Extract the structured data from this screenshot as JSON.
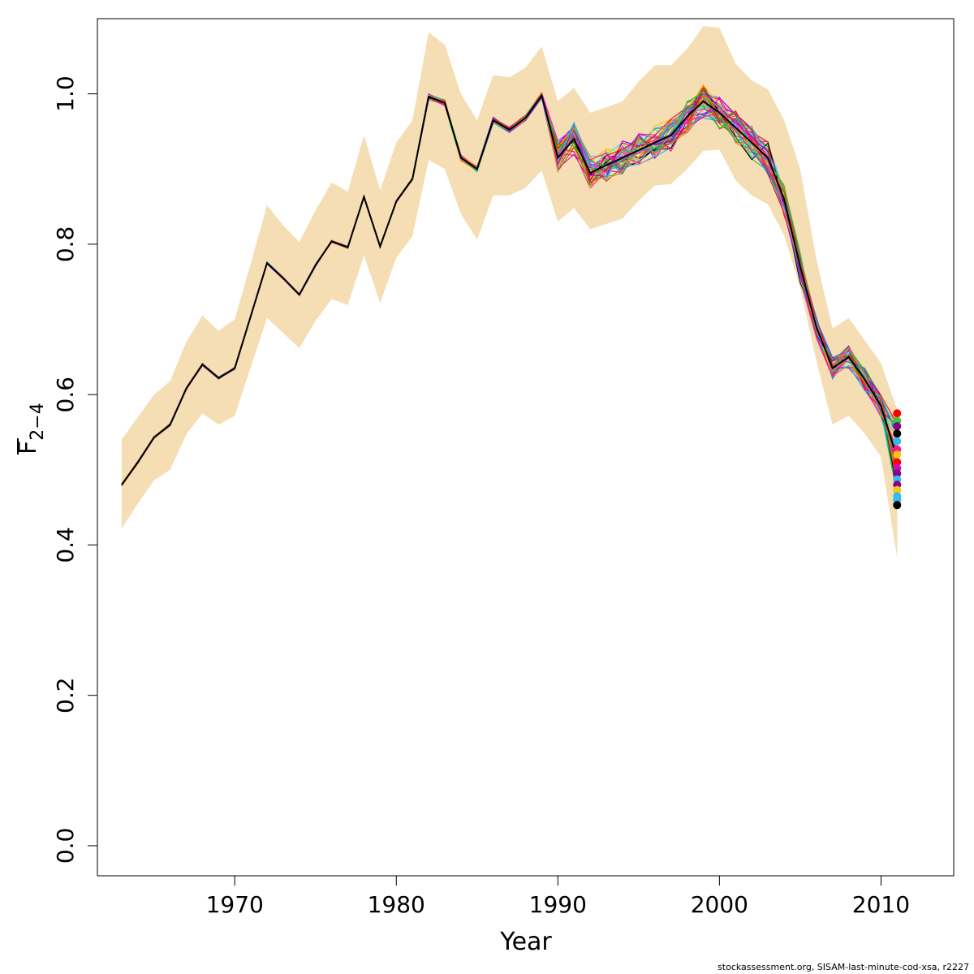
{
  "chart_data": {
    "type": "line",
    "title": "",
    "xlabel": "Year",
    "ylabel": "F",
    "ylabel_subscript": "2−4",
    "xlim": [
      1961.5,
      2014.5
    ],
    "ylim": [
      -0.04,
      1.1
    ],
    "x_ticks": [
      1970,
      1980,
      1990,
      2000,
      2010
    ],
    "x_tick_labels": [
      "1970",
      "1980",
      "1990",
      "2000",
      "2010"
    ],
    "y_ticks": [
      0.0,
      0.2,
      0.4,
      0.6,
      0.8,
      1.0
    ],
    "y_tick_labels": [
      "0.0",
      "0.2",
      "0.4",
      "0.6",
      "0.8",
      "1.0"
    ],
    "grid": false,
    "band_color": "#f5deb3",
    "x": [
      1963,
      1964,
      1965,
      1966,
      1967,
      1968,
      1969,
      1970,
      1971,
      1972,
      1973,
      1974,
      1975,
      1976,
      1977,
      1978,
      1979,
      1980,
      1981,
      1982,
      1983,
      1984,
      1985,
      1986,
      1987,
      1988,
      1989,
      1990,
      1991,
      1992,
      1993,
      1994,
      1995,
      1996,
      1997,
      1998,
      1999,
      2000,
      2001,
      2002,
      2003,
      2004,
      2005,
      2006,
      2007,
      2008,
      2009,
      2010,
      2011
    ],
    "central": [
      0.48,
      0.51,
      0.543,
      0.56,
      0.608,
      0.64,
      0.622,
      0.635,
      0.705,
      0.775,
      0.755,
      0.733,
      0.772,
      0.804,
      0.796,
      0.863,
      0.797,
      0.857,
      0.887,
      0.996,
      0.988,
      0.915,
      0.9,
      0.965,
      0.952,
      0.968,
      0.998,
      0.915,
      0.94,
      0.895,
      0.905,
      0.915,
      0.925,
      0.935,
      0.945,
      0.97,
      0.99,
      0.975,
      0.955,
      0.935,
      0.915,
      0.86,
      0.77,
      0.69,
      0.635,
      0.65,
      0.62,
      0.585,
      0.515
    ],
    "band_upper": [
      0.54,
      0.57,
      0.6,
      0.618,
      0.67,
      0.705,
      0.685,
      0.7,
      0.775,
      0.852,
      0.825,
      0.803,
      0.845,
      0.882,
      0.87,
      0.945,
      0.872,
      0.935,
      0.965,
      1.082,
      1.065,
      1.0,
      0.965,
      1.025,
      1.022,
      1.035,
      1.063,
      0.99,
      1.008,
      0.975,
      0.982,
      0.99,
      1.016,
      1.038,
      1.038,
      1.06,
      1.09,
      1.088,
      1.04,
      1.018,
      1.006,
      0.965,
      0.9,
      0.78,
      0.688,
      0.702,
      0.672,
      0.642,
      0.58
    ],
    "band_lower": [
      0.422,
      0.455,
      0.486,
      0.5,
      0.547,
      0.575,
      0.56,
      0.572,
      0.637,
      0.702,
      0.682,
      0.662,
      0.698,
      0.727,
      0.719,
      0.785,
      0.722,
      0.782,
      0.811,
      0.912,
      0.9,
      0.84,
      0.806,
      0.865,
      0.865,
      0.875,
      0.898,
      0.83,
      0.848,
      0.82,
      0.827,
      0.834,
      0.858,
      0.878,
      0.88,
      0.9,
      0.924,
      0.926,
      0.885,
      0.865,
      0.853,
      0.812,
      0.742,
      0.645,
      0.56,
      0.572,
      0.548,
      0.517,
      0.383
    ],
    "series_colors": [
      "#000000",
      "#df536b",
      "#61d04f",
      "#2297e6",
      "#28e2e5",
      "#cd0bbc",
      "#f5c710",
      "#9e9e9e",
      "#ff0000",
      "#ff00ff",
      "#ff6a00",
      "#00c000",
      "#7f00ff",
      "#00bfff",
      "#a05a00",
      "#ff1493",
      "#e6194b",
      "#3cb44b",
      "#4363d8",
      "#f58231"
    ],
    "end_points": [
      {
        "year": 2011,
        "value": 0.575,
        "color": "#ff0000"
      },
      {
        "year": 2011,
        "value": 0.565,
        "color": "#33cc33"
      },
      {
        "year": 2011,
        "value": 0.558,
        "color": "#8b008b"
      },
      {
        "year": 2011,
        "value": 0.548,
        "color": "#000000"
      },
      {
        "year": 2011,
        "value": 0.538,
        "color": "#33bbee"
      },
      {
        "year": 2011,
        "value": 0.527,
        "color": "#ff1493"
      },
      {
        "year": 2011,
        "value": 0.52,
        "color": "#f5c710"
      },
      {
        "year": 2011,
        "value": 0.51,
        "color": "#ff0000"
      },
      {
        "year": 2011,
        "value": 0.502,
        "color": "#cd0bbc"
      },
      {
        "year": 2011,
        "value": 0.495,
        "color": "#8b008b"
      },
      {
        "year": 2011,
        "value": 0.487,
        "color": "#33bbee"
      },
      {
        "year": 2011,
        "value": 0.48,
        "color": "#8b008b"
      },
      {
        "year": 2011,
        "value": 0.473,
        "color": "#f5c710"
      },
      {
        "year": 2011,
        "value": 0.465,
        "color": "#33bbee"
      },
      {
        "year": 2011,
        "value": 0.46,
        "color": "#33bbee"
      },
      {
        "year": 2011,
        "value": 0.453,
        "color": "#000000"
      }
    ]
  },
  "footer": "stockassessment.org, SISAM-last-minute-cod-xsa, r2227"
}
